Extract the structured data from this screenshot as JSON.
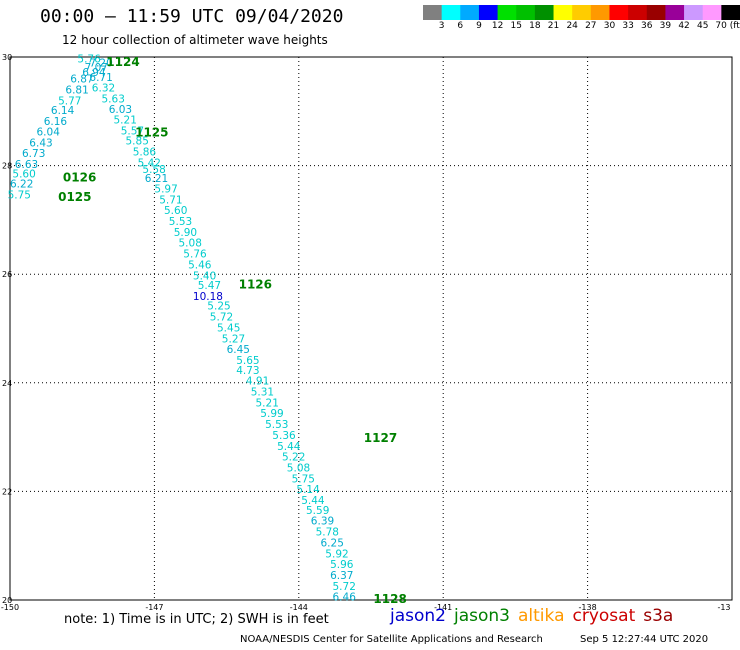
{
  "title": "00:00 – 11:59 UTC 09/04/2020",
  "subtitle": "12 hour collection of altimeter wave heights",
  "legend": {
    "colors": [
      "#808080",
      "#00ffff",
      "#00aaff",
      "#0000ff",
      "#00e000",
      "#00c000",
      "#009000",
      "#ffff00",
      "#ffcc00",
      "#ff9900",
      "#ff0000",
      "#cc0000",
      "#990000",
      "#990099",
      "#cc99ff",
      "#ff99ff",
      "#000000"
    ],
    "labels": [
      "3",
      "6",
      "9",
      "12",
      "15",
      "18",
      "21",
      "24",
      "27",
      "30",
      "33",
      "36",
      "39",
      "42",
      "45",
      "70 (ft)"
    ]
  },
  "axes": {
    "lat_labels": [
      "30",
      "28",
      "26",
      "24",
      "22",
      "20"
    ],
    "lon_labels": [
      "-150",
      "-147",
      "-144",
      "-141",
      "-138",
      "-13"
    ]
  },
  "map": {
    "lon_min": -150,
    "lon_max": -135,
    "lat_min": 20,
    "lat_max": 30
  },
  "observations": [
    {
      "v": "5.76",
      "lon": -148.6,
      "lat": 29.97,
      "c": "#00cccc"
    },
    {
      "v": "7.20",
      "lon": -148.35,
      "lat": 29.9,
      "c": "#00aacc"
    },
    {
      "v": "7.07",
      "lon": -148.45,
      "lat": 29.82,
      "c": "#00aacc"
    },
    {
      "v": "6.94",
      "lon": -148.5,
      "lat": 29.72,
      "c": "#00aacc"
    },
    {
      "v": "6.71",
      "lon": -148.35,
      "lat": 29.63,
      "c": "#00aacc"
    },
    {
      "v": "6.87",
      "lon": -148.75,
      "lat": 29.6,
      "c": "#00aacc"
    },
    {
      "v": "6.32",
      "lon": -148.3,
      "lat": 29.44,
      "c": "#00cccc"
    },
    {
      "v": "6.81",
      "lon": -148.85,
      "lat": 29.4,
      "c": "#00aacc"
    },
    {
      "v": "5.63",
      "lon": -148.1,
      "lat": 29.24,
      "c": "#00cccc"
    },
    {
      "v": "5.77",
      "lon": -149.0,
      "lat": 29.2,
      "c": "#00cccc"
    },
    {
      "v": "6.03",
      "lon": -147.95,
      "lat": 29.04,
      "c": "#00aacc"
    },
    {
      "v": "6.14",
      "lon": -149.15,
      "lat": 29.02,
      "c": "#00aacc"
    },
    {
      "v": "5.21",
      "lon": -147.85,
      "lat": 28.85,
      "c": "#00cccc"
    },
    {
      "v": "6.16",
      "lon": -149.3,
      "lat": 28.82,
      "c": "#00aacc"
    },
    {
      "v": "5.57",
      "lon": -147.7,
      "lat": 28.65,
      "c": "#00cccc"
    },
    {
      "v": "6.04",
      "lon": -149.45,
      "lat": 28.63,
      "c": "#00aacc"
    },
    {
      "v": "5.85",
      "lon": -147.6,
      "lat": 28.46,
      "c": "#00cccc"
    },
    {
      "v": "6.43",
      "lon": -149.6,
      "lat": 28.43,
      "c": "#00aacc"
    },
    {
      "v": "5.86",
      "lon": -147.45,
      "lat": 28.26,
      "c": "#00cccc"
    },
    {
      "v": "6.73",
      "lon": -149.75,
      "lat": 28.23,
      "c": "#00aacc"
    },
    {
      "v": "5.42",
      "lon": -147.35,
      "lat": 28.06,
      "c": "#00cccc"
    },
    {
      "v": "6.63",
      "lon": -149.9,
      "lat": 28.03,
      "c": "#00aacc"
    },
    {
      "v": "5.58",
      "lon": -147.25,
      "lat": 27.94,
      "c": "#00cccc"
    },
    {
      "v": "5.60",
      "lon": -149.95,
      "lat": 27.85,
      "c": "#00cccc"
    },
    {
      "v": "6.21",
      "lon": -147.2,
      "lat": 27.77,
      "c": "#00aacc"
    },
    {
      "v": "6.22",
      "lon": -150.0,
      "lat": 27.67,
      "c": "#00aacc"
    },
    {
      "v": "5.97",
      "lon": -147.0,
      "lat": 27.58,
      "c": "#00cccc"
    },
    {
      "v": "5.75",
      "lon": -150.05,
      "lat": 27.47,
      "c": "#00cccc"
    },
    {
      "v": "5.71",
      "lon": -146.9,
      "lat": 27.38,
      "c": "#00cccc"
    },
    {
      "v": "5.60",
      "lon": -146.8,
      "lat": 27.18,
      "c": "#00cccc"
    },
    {
      "v": "5.53",
      "lon": -146.7,
      "lat": 26.98,
      "c": "#00cccc"
    },
    {
      "v": "5.90",
      "lon": -146.6,
      "lat": 26.78,
      "c": "#00cccc"
    },
    {
      "v": "5.08",
      "lon": -146.5,
      "lat": 26.58,
      "c": "#00cccc"
    },
    {
      "v": "5.76",
      "lon": -146.4,
      "lat": 26.38,
      "c": "#00cccc"
    },
    {
      "v": "5.46",
      "lon": -146.3,
      "lat": 26.18,
      "c": "#00cccc"
    },
    {
      "v": "5.40",
      "lon": -146.2,
      "lat": 25.98,
      "c": "#00cccc"
    },
    {
      "v": "5.47",
      "lon": -146.1,
      "lat": 25.8,
      "c": "#00cccc"
    },
    {
      "v": "10.18",
      "lon": -146.2,
      "lat": 25.6,
      "c": "#0000cc"
    },
    {
      "v": "5.25",
      "lon": -145.9,
      "lat": 25.42,
      "c": "#00cccc"
    },
    {
      "v": "5.72",
      "lon": -145.85,
      "lat": 25.22,
      "c": "#00cccc"
    },
    {
      "v": "5.45",
      "lon": -145.7,
      "lat": 25.02,
      "c": "#00cccc"
    },
    {
      "v": "5.27",
      "lon": -145.6,
      "lat": 24.82,
      "c": "#00cccc"
    },
    {
      "v": "6.45",
      "lon": -145.5,
      "lat": 24.62,
      "c": "#00aacc"
    },
    {
      "v": "5.65",
      "lon": -145.3,
      "lat": 24.42,
      "c": "#00cccc"
    },
    {
      "v": "4.73",
      "lon": -145.3,
      "lat": 24.24,
      "c": "#00cccc"
    },
    {
      "v": "4.91",
      "lon": -145.1,
      "lat": 24.04,
      "c": "#00cccc"
    },
    {
      "v": "5.31",
      "lon": -145.0,
      "lat": 23.84,
      "c": "#00cccc"
    },
    {
      "v": "5.21",
      "lon": -144.9,
      "lat": 23.64,
      "c": "#00cccc"
    },
    {
      "v": "5.99",
      "lon": -144.8,
      "lat": 23.44,
      "c": "#00cccc"
    },
    {
      "v": "5.53",
      "lon": -144.7,
      "lat": 23.24,
      "c": "#00cccc"
    },
    {
      "v": "5.36",
      "lon": -144.55,
      "lat": 23.04,
      "c": "#00cccc"
    },
    {
      "v": "5.44",
      "lon": -144.45,
      "lat": 22.84,
      "c": "#00cccc"
    },
    {
      "v": "5.22",
      "lon": -144.35,
      "lat": 22.64,
      "c": "#00cccc"
    },
    {
      "v": "5.08",
      "lon": -144.25,
      "lat": 22.44,
      "c": "#00cccc"
    },
    {
      "v": "5.75",
      "lon": -144.15,
      "lat": 22.24,
      "c": "#00cccc"
    },
    {
      "v": "5.14",
      "lon": -144.05,
      "lat": 22.04,
      "c": "#00cccc"
    },
    {
      "v": "5.44",
      "lon": -143.95,
      "lat": 21.84,
      "c": "#00cccc"
    },
    {
      "v": "5.59",
      "lon": -143.85,
      "lat": 21.66,
      "c": "#00cccc"
    },
    {
      "v": "6.39",
      "lon": -143.75,
      "lat": 21.46,
      "c": "#00aacc"
    },
    {
      "v": "5.78",
      "lon": -143.65,
      "lat": 21.26,
      "c": "#00cccc"
    },
    {
      "v": "6.25",
      "lon": -143.55,
      "lat": 21.06,
      "c": "#00aacc"
    },
    {
      "v": "5.92",
      "lon": -143.45,
      "lat": 20.86,
      "c": "#00cccc"
    },
    {
      "v": "5.96",
      "lon": -143.35,
      "lat": 20.66,
      "c": "#00cccc"
    },
    {
      "v": "6.37",
      "lon": -143.35,
      "lat": 20.46,
      "c": "#00aacc"
    },
    {
      "v": "5.72",
      "lon": -143.3,
      "lat": 20.26,
      "c": "#00cccc"
    },
    {
      "v": "6.46",
      "lon": -143.3,
      "lat": 20.06,
      "c": "#00aacc"
    }
  ],
  "times": [
    {
      "v": "1124",
      "lon": -148.0,
      "lat": 29.93
    },
    {
      "v": "1125",
      "lon": -147.4,
      "lat": 28.63
    },
    {
      "v": "0126",
      "lon": -148.9,
      "lat": 27.8
    },
    {
      "v": "0125",
      "lon": -149.0,
      "lat": 27.44
    },
    {
      "v": "1126",
      "lon": -145.25,
      "lat": 25.83
    },
    {
      "v": "1127",
      "lon": -142.65,
      "lat": 23.0
    },
    {
      "v": "1128",
      "lon": -142.45,
      "lat": 20.04
    }
  ],
  "time_color": "#008000",
  "note": "note:  1) Time is in UTC;  2) SWH is in feet",
  "satellites": [
    {
      "name": "jason2",
      "color": "#0000cc"
    },
    {
      "name": "jason3",
      "color": "#008000"
    },
    {
      "name": "altika",
      "color": "#ff9900"
    },
    {
      "name": "cryosat",
      "color": "#cc0000"
    },
    {
      "name": "s3a",
      "color": "#990000"
    }
  ],
  "credit": "NOAA/NESDIS Center for Satellite Applications and Research",
  "timestamp": "Sep  5 12:27:44 UTC 2020"
}
